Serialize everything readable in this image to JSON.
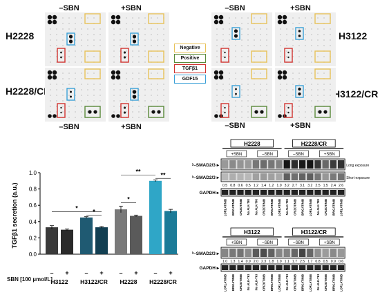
{
  "figure": {
    "panel_a": {
      "conditions": [
        "–SBN",
        "+SBN"
      ],
      "left_rows": [
        "H2228",
        "H2228/CR"
      ],
      "right_rows": [
        "H3122",
        "H3122/CR"
      ],
      "legend": [
        {
          "label": "Negative",
          "color": "#e8c25a"
        },
        {
          "label": "Positive",
          "color": "#5a8a3a"
        },
        {
          "label": "TGFβ1",
          "color": "#d1322e"
        },
        {
          "label": "GDF15",
          "color": "#3aa0d8"
        }
      ]
    },
    "panel_b": {
      "sbn_label": "SBN [100 µmol/L]",
      "sbn_signs": [
        "–",
        "+",
        "–",
        "+",
        "–",
        "+",
        "–",
        "+"
      ],
      "significance": [
        "*",
        "*",
        "*",
        "**",
        "**"
      ]
    },
    "panel_c": {
      "top": {
        "groups": [
          "H2228",
          "H2228/CR"
        ],
        "subgroups": [
          "+SBN",
          "–SBN",
          "–SBN",
          "+SBN"
        ],
        "row_labels": [
          "P–SMAD2/3",
          "P–SMAD2/3",
          "GAPDH"
        ],
        "exposure_labels": [
          "Long exposure",
          "Short exposure"
        ],
        "quant": [
          "0.5",
          "0.8",
          "0.6",
          "0.5",
          "1.2",
          "1.4",
          "1.2",
          "1.0",
          "3.2",
          "2.7",
          "3.1",
          "3.2",
          "2.5",
          "1.5",
          "2.4",
          "2.6"
        ],
        "lanes": [
          "LORLATINIB",
          "BRIGATINIB",
          "CRIZOTINIB",
          "No ALK-TKI",
          "No ALK-TKI",
          "CRIZOTINIB",
          "BRIGATINIB",
          "LORLATINIB",
          "No ALK-TKI",
          "CRIZOTINIB",
          "BRIGATINIB",
          "LORLATINIB",
          "No ALK-TKI",
          "CRIZOTINIB",
          "BRIGATINIB",
          "LORLATINIB"
        ]
      },
      "bottom": {
        "groups": [
          "H3122",
          "H3122/CR"
        ],
        "subgroups": [
          "+SBN",
          "–SBN",
          "–SBN",
          "+SBN"
        ],
        "row_labels": [
          "P–SMAD2/3",
          "GAPDH"
        ],
        "quant": [
          "1.0",
          "1.3",
          "1.4",
          "0.9",
          "2.0",
          "2.3",
          "1.8",
          "1.0",
          "1.1",
          "1.7",
          "2.5",
          "1.7",
          "0.8",
          "0.5",
          "0.9",
          "0.6"
        ],
        "lanes": [
          "LORLATINIB",
          "BRIGATINIB",
          "CRIZOTINIB",
          "No ALK-TKI",
          "No ALK-TKI",
          "CRIZOTINIB",
          "BRIGATINIB",
          "LORLATINIB",
          "No ALK-TKI",
          "CRIZOTINIB",
          "BRIGATINIB",
          "LORLATINIB",
          "No ALK-TKI",
          "CRIZOTINIB",
          "BRIGATINIB",
          "LORLATINIB"
        ]
      }
    }
  },
  "chart_data": {
    "type": "bar",
    "ylabel": "TGFβ1 secretion (a.u.)",
    "xlabel": "",
    "categories": [
      "H3122",
      "H3122/CR",
      "H2228",
      "H2228/CR"
    ],
    "ylim": [
      0,
      1.0
    ],
    "yticks": [
      "0.0",
      "0.2",
      "0.4",
      "0.6",
      "0.8",
      "1.0"
    ],
    "series": [
      {
        "values": [
          0.33,
          0.45,
          0.55,
          0.9
        ],
        "errors": [
          0.02,
          0.01,
          0.04,
          0.01
        ],
        "colors": [
          "#3a3a3a",
          "#1f5a72",
          "#7a7a7a",
          "#2fa6c7"
        ]
      },
      {
        "values": [
          0.3,
          0.33,
          0.47,
          0.53
        ],
        "errors": [
          0.01,
          0.01,
          0.01,
          0.02
        ],
        "colors": [
          "#2a2a2a",
          "#123f52",
          "#5a5a5a",
          "#1b7b98"
        ]
      }
    ],
    "grid": false
  }
}
